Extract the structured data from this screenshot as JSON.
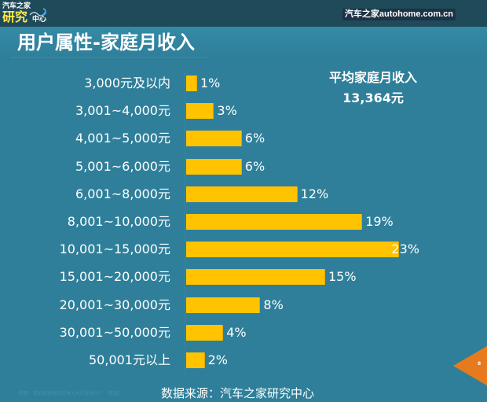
{
  "header": {
    "logo_line1": "汽车之家",
    "logo_line2": "研究",
    "logo_line3": "中心",
    "site": "汽车之家autohome.com.cn"
  },
  "page_title": "用户属性-家庭月收入",
  "average": {
    "label": "平均家庭月收入",
    "value": "13,364元"
  },
  "footer": {
    "source": "数据来源：汽车之家研究中心",
    "footnote": "题目：您的家庭税前月收入大约是多少？（单选）",
    "page_number": "8"
  },
  "colors": {
    "background": "#2f7f9a",
    "topbar": "#1f4a5a",
    "bar": "#ffc300",
    "text": "#ffffff",
    "page_marker": "#e87a1e"
  },
  "chart_data": {
    "type": "bar",
    "orientation": "horizontal",
    "title": "用户属性-家庭月收入",
    "xlabel": "",
    "ylabel": "",
    "categories": [
      "3,000元及以内",
      "3,001~4,000元",
      "4,001~5,000元",
      "5,001~6,000元",
      "6,001~8,000元",
      "8,001~10,000元",
      "10,001~15,000元",
      "15,001~20,000元",
      "20,001~30,000元",
      "30,001~50,000元",
      "50,001元以上"
    ],
    "values": [
      1,
      3,
      6,
      6,
      12,
      19,
      23,
      15,
      8,
      4,
      2
    ],
    "value_labels": [
      "1%",
      "3%",
      "6%",
      "6%",
      "12%",
      "19%",
      "23%",
      "15%",
      "8%",
      "4%",
      "2%"
    ],
    "unit": "%",
    "grid": false,
    "legend": "none",
    "annotation": "平均家庭月收入 13,364元",
    "source": "数据来源：汽车之家研究中心"
  }
}
